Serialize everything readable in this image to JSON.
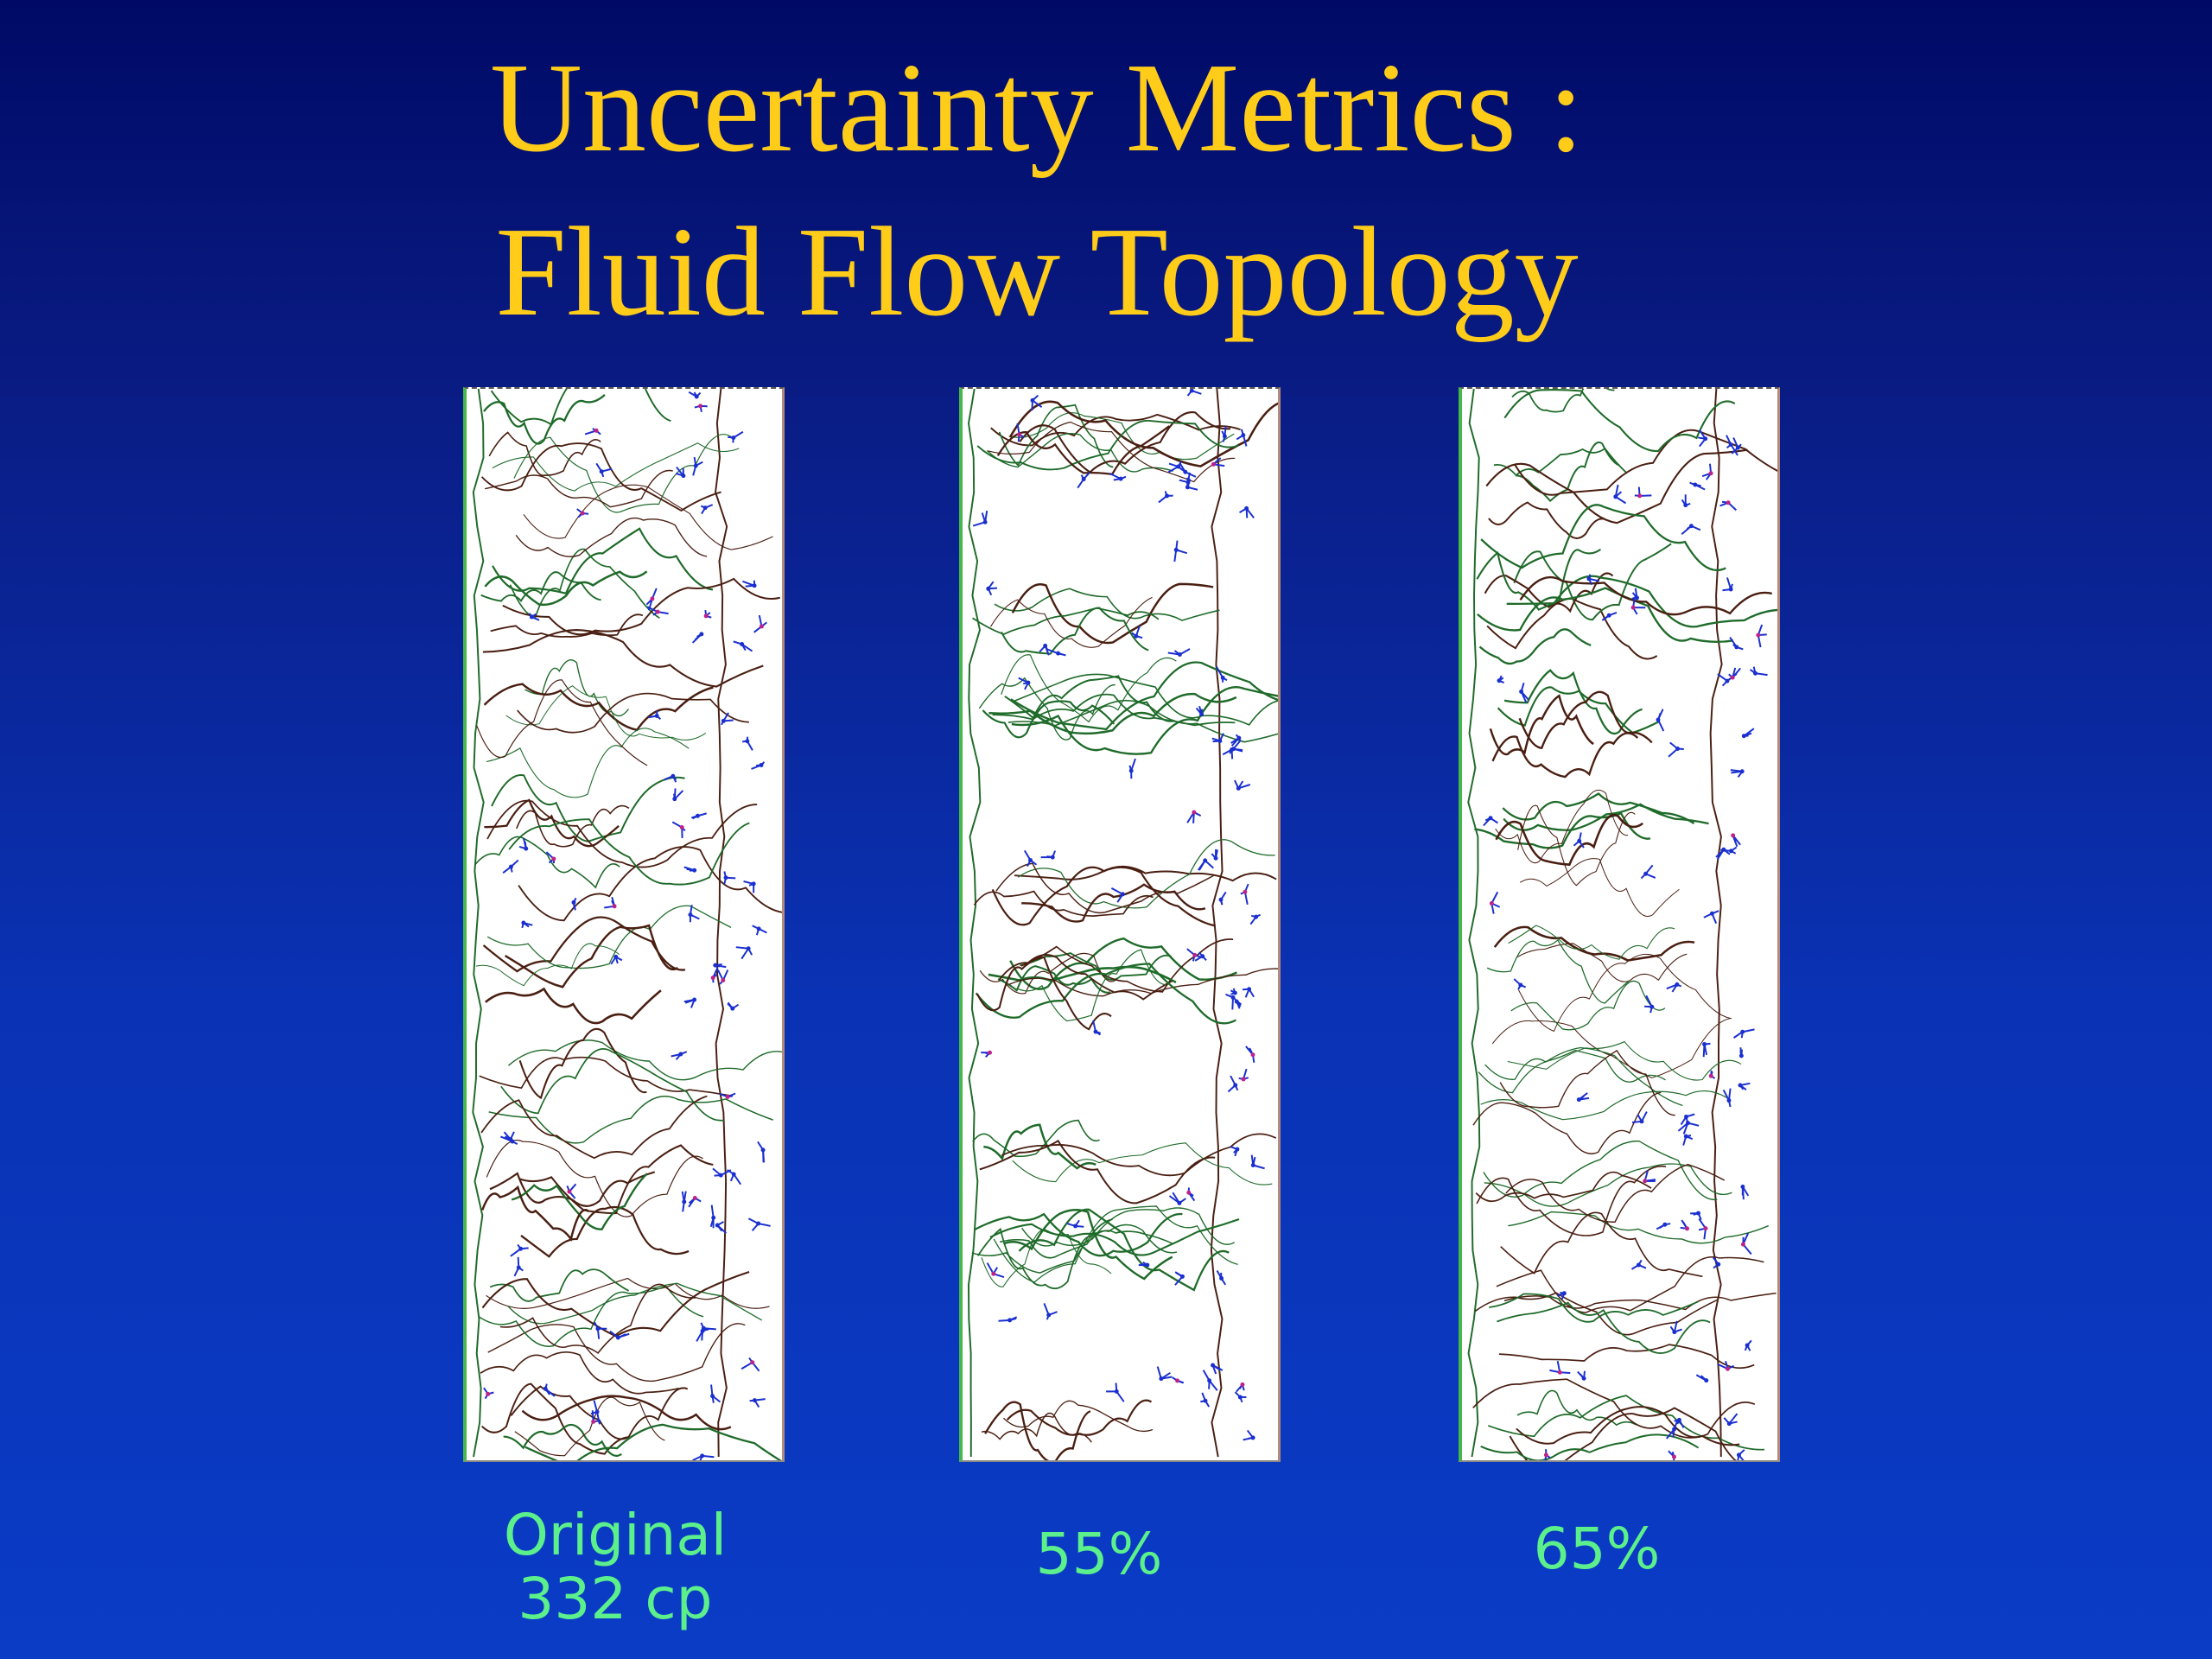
{
  "title": {
    "line1": "Uncertainty Metrics :",
    "line2": "Fluid Flow Topology"
  },
  "panels": [
    {
      "caption_lines": [
        "Original",
        "332 cp"
      ]
    },
    {
      "caption_lines": [
        "55%"
      ]
    },
    {
      "caption_lines": [
        "65%"
      ]
    }
  ],
  "colors": {
    "title": "#ffcc1a",
    "caption": "#5cf08c",
    "background_top": "#000a66",
    "background_bottom": "#0a3cc6",
    "streamline_dark": "#4a1f12",
    "streamline_green": "#1f6b2a",
    "critical_point": "#1a2fd0"
  }
}
